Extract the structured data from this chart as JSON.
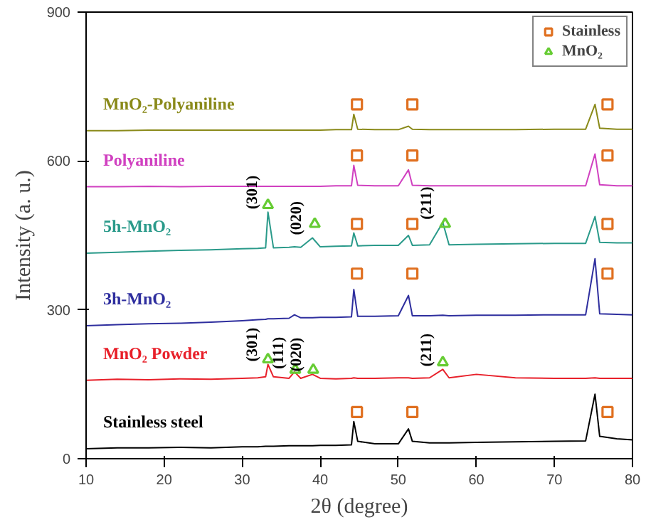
{
  "chart_data": {
    "type": "line",
    "xlabel": "2θ (degree)",
    "ylabel": "Intensity (a. u.)",
    "xlim": [
      10,
      80
    ],
    "ylim": [
      0,
      900
    ],
    "xticks": [
      10,
      20,
      30,
      40,
      50,
      60,
      70,
      80
    ],
    "yticks": [
      0,
      300,
      600,
      900
    ],
    "grid": false,
    "legend": "top right",
    "line_style": "solid",
    "x": [
      10,
      14,
      18,
      22,
      26,
      30,
      32,
      33,
      33.3,
      34,
      36,
      36.7,
      37.5,
      39,
      40,
      42,
      44,
      44.3,
      44.8,
      47,
      50,
      51.3,
      51.8,
      54,
      55.7,
      56.5,
      60,
      65,
      70,
      74,
      75.2,
      75.8,
      78,
      80
    ],
    "series": [
      {
        "name": "Stainless steel",
        "color": "#000000",
        "values": [
          20,
          22,
          22,
          23,
          22,
          24,
          24,
          25,
          25,
          25,
          26,
          26,
          26,
          26,
          27,
          27,
          28,
          75,
          35,
          30,
          30,
          60,
          35,
          32,
          32,
          32,
          33,
          34,
          35,
          36,
          130,
          45,
          40,
          38
        ]
      },
      {
        "name": "MnO₂ Powder",
        "color": "#e8202a",
        "values": [
          158,
          160,
          159,
          161,
          160,
          162,
          163,
          165,
          190,
          165,
          162,
          175,
          162,
          170,
          162,
          161,
          162,
          163,
          162,
          162,
          163,
          163,
          162,
          163,
          180,
          163,
          170,
          163,
          162,
          162,
          163,
          162,
          162,
          162
        ]
      },
      {
        "name": "3h-MnO₂",
        "color": "#2e2e9e",
        "values": [
          268,
          270,
          272,
          273,
          275,
          278,
          280,
          281,
          282,
          282,
          283,
          290,
          284,
          284,
          285,
          285,
          286,
          341,
          287,
          287,
          288,
          329,
          288,
          288,
          289,
          288,
          289,
          289,
          290,
          290,
          403,
          292,
          291,
          290
        ]
      },
      {
        "name": "5h-MnO₂",
        "color": "#2a9a8a",
        "values": [
          414,
          416,
          418,
          420,
          421,
          423,
          424,
          425,
          497,
          425,
          426,
          427,
          426,
          445,
          427,
          428,
          429,
          455,
          429,
          430,
          430,
          450,
          430,
          431,
          476,
          431,
          432,
          433,
          434,
          434,
          488,
          436,
          435,
          435
        ]
      },
      {
        "name": "Polyaniline",
        "color": "#d040c0",
        "values": [
          548,
          548,
          549,
          548,
          549,
          549,
          549,
          549,
          549,
          549,
          549,
          549,
          549,
          549,
          549,
          550,
          550,
          591,
          551,
          550,
          550,
          582,
          551,
          550,
          550,
          550,
          550,
          550,
          550,
          550,
          614,
          552,
          550,
          550
        ]
      },
      {
        "name": "MnO₂-Polyaniline",
        "color": "#8a8a1a",
        "values": [
          661,
          661,
          662,
          662,
          662,
          662,
          662,
          662,
          662,
          662,
          662,
          662,
          662,
          662,
          662,
          663,
          663,
          694,
          664,
          663,
          663,
          670,
          664,
          663,
          663,
          663,
          663,
          663,
          664,
          664,
          714,
          666,
          664,
          664
        ]
      },
      {
        "name": "Stainless",
        "type": "scatter",
        "marker": "square",
        "color": "#e07020",
        "x": [
          44.7,
          51.8,
          76.8,
          44.7,
          51.8,
          76.8,
          44.7,
          51.8,
          76.8,
          44.7,
          51.8,
          76.8,
          44.7,
          51.8,
          76.8
        ],
        "values": [
          94,
          94,
          94,
          373,
          373,
          373,
          473,
          473,
          473,
          611,
          611,
          611,
          714,
          714,
          714
        ]
      },
      {
        "name": "MnO₂",
        "type": "scatter",
        "marker": "triangle",
        "color": "#66cc33",
        "x": [
          33.3,
          36.8,
          39.1,
          55.7,
          33.3,
          39.3,
          56
        ],
        "values": [
          200,
          179,
          179,
          194,
          511,
          473,
          473
        ]
      }
    ],
    "annotations": [
      {
        "text": "(301)",
        "x": 33.3,
        "y": 190
      },
      {
        "text": "(111)",
        "x": 36.7,
        "y": 175
      },
      {
        "text": "(020)",
        "x": 39,
        "y": 170
      },
      {
        "text": "(211)",
        "x": 55.7,
        "y": 180
      },
      {
        "text": "(301)",
        "x": 33.3,
        "y": 497
      },
      {
        "text": "(020)",
        "x": 39,
        "y": 445
      },
      {
        "text": "(211)",
        "x": 55.7,
        "y": 476
      }
    ]
  }
}
